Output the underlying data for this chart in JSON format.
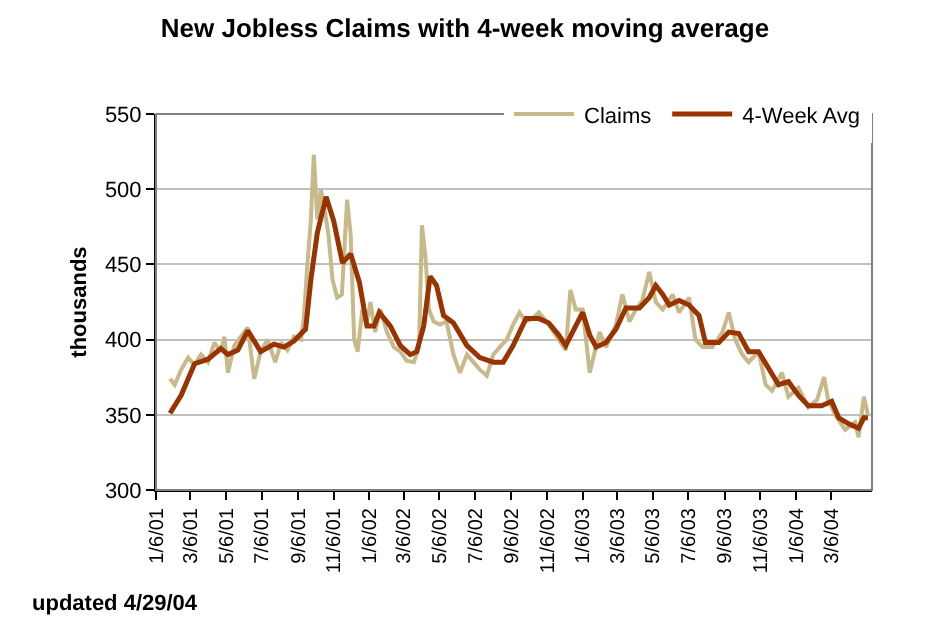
{
  "chart_data": {
    "type": "line",
    "title": "New Jobless Claims with 4-week moving average",
    "ylabel": "thousands",
    "annotations": [
      "updated 4/29/04"
    ],
    "xlim": [
      "2001-01-06",
      "2004-05-15"
    ],
    "xticks": [
      {
        "value": "2001-01-06",
        "label": "1/6/01"
      },
      {
        "value": "2001-03-06",
        "label": "3/6/01"
      },
      {
        "value": "2001-05-06",
        "label": "5/6/01"
      },
      {
        "value": "2001-07-06",
        "label": "7/6/01"
      },
      {
        "value": "2001-09-06",
        "label": "9/6/01"
      },
      {
        "value": "2001-11-06",
        "label": "11/6/01"
      },
      {
        "value": "2002-01-06",
        "label": "1/6/02"
      },
      {
        "value": "2002-03-06",
        "label": "3/6/02"
      },
      {
        "value": "2002-05-06",
        "label": "5/6/02"
      },
      {
        "value": "2002-07-06",
        "label": "7/6/02"
      },
      {
        "value": "2002-09-06",
        "label": "9/6/02"
      },
      {
        "value": "2002-11-06",
        "label": "11/6/02"
      },
      {
        "value": "2003-01-06",
        "label": "1/6/03"
      },
      {
        "value": "2003-03-06",
        "label": "3/6/03"
      },
      {
        "value": "2003-05-06",
        "label": "5/6/03"
      },
      {
        "value": "2003-07-06",
        "label": "7/6/03"
      },
      {
        "value": "2003-09-06",
        "label": "9/6/03"
      },
      {
        "value": "2003-11-06",
        "label": "11/6/03"
      },
      {
        "value": "2004-01-06",
        "label": "1/6/04"
      },
      {
        "value": "2004-03-06",
        "label": "3/6/04"
      }
    ],
    "ylim": [
      300,
      550
    ],
    "yticks": [
      300,
      350,
      400,
      450,
      500,
      550
    ],
    "grid": "y",
    "legend": "top right",
    "marker": "none",
    "line_style": "solid",
    "series": [
      {
        "name": "Claims",
        "color": "#c8b98a",
        "x": [
          "2001-01-30",
          "2001-02-07",
          "2001-02-18",
          "2001-03-02",
          "2001-03-13",
          "2001-03-24",
          "2001-04-05",
          "2001-04-16",
          "2001-04-27",
          "2001-05-03",
          "2001-05-09",
          "2001-05-20",
          "2001-05-31",
          "2001-06-12",
          "2001-06-23",
          "2001-07-04",
          "2001-07-16",
          "2001-07-29",
          "2001-08-08",
          "2001-08-19",
          "2001-08-30",
          "2001-09-11",
          "2001-09-16",
          "2001-09-22",
          "2001-09-28",
          "2001-10-03",
          "2001-10-09",
          "2001-10-15",
          "2001-10-20",
          "2001-10-28",
          "2001-11-04",
          "2001-11-12",
          "2001-11-20",
          "2001-11-29",
          "2001-12-05",
          "2001-12-11",
          "2001-12-17",
          "2001-12-25",
          "2002-01-01",
          "2002-01-08",
          "2002-01-16",
          "2002-01-25",
          "2002-02-05",
          "2002-02-17",
          "2002-02-28",
          "2002-03-11",
          "2002-03-23",
          "2002-04-01",
          "2002-04-06",
          "2002-04-12",
          "2002-04-18",
          "2002-04-26",
          "2002-05-07",
          "2002-05-18",
          "2002-05-30",
          "2002-06-10",
          "2002-06-22",
          "2002-07-03",
          "2002-07-14",
          "2002-07-26",
          "2002-08-06",
          "2002-08-17",
          "2002-08-29",
          "2002-09-09",
          "2002-09-20",
          "2002-10-01",
          "2002-10-12",
          "2002-10-23",
          "2002-11-09",
          "2002-11-26",
          "2002-12-08",
          "2002-12-16",
          "2002-12-25",
          "2003-01-06",
          "2003-01-18",
          "2003-02-04",
          "2003-02-15",
          "2003-03-04",
          "2003-03-15",
          "2003-03-27",
          "2003-04-07",
          "2003-04-18",
          "2003-04-30",
          "2003-05-11",
          "2003-05-23",
          "2003-06-09",
          "2003-06-20",
          "2003-07-07",
          "2003-07-18",
          "2003-07-30",
          "2003-08-16",
          "2003-09-02",
          "2003-09-13",
          "2003-09-24",
          "2003-10-06",
          "2003-10-17",
          "2003-11-03",
          "2003-11-15",
          "2003-11-26",
          "2003-12-13",
          "2003-12-24",
          "2004-01-10",
          "2004-01-27",
          "2004-02-11",
          "2004-02-23",
          "2004-03-01",
          "2004-03-13",
          "2004-03-30",
          "2004-04-16",
          "2004-04-22",
          "2004-05-01",
          "2004-05-08"
        ],
        "values": [
          374,
          370,
          380,
          388,
          383,
          390,
          385,
          398,
          392,
          402,
          378,
          396,
          402,
          408,
          374,
          392,
          400,
          385,
          398,
          393,
          402,
          400,
          415,
          450,
          480,
          523,
          480,
          500,
          490,
          470,
          440,
          428,
          430,
          493,
          470,
          400,
          392,
          420,
          410,
          425,
          405,
          420,
          405,
          395,
          392,
          386,
          385,
          395,
          476,
          455,
          420,
          412,
          410,
          412,
          390,
          378,
          390,
          385,
          380,
          376,
          390,
          395,
          400,
          410,
          418,
          412,
          414,
          418,
          410,
          400,
          393,
          433,
          420,
          420,
          378,
          405,
          395,
          410,
          430,
          412,
          420,
          426,
          445,
          425,
          420,
          430,
          418,
          428,
          400,
          395,
          395,
          405,
          418,
          400,
          390,
          385,
          392,
          370,
          366,
          378,
          362,
          368,
          355,
          360,
          375,
          360,
          350,
          340,
          345,
          335,
          362,
          350
        ]
      },
      {
        "name": "4-Week Avg",
        "color": "#993300",
        "x": [
          "2001-01-30",
          "2001-02-18",
          "2001-03-13",
          "2001-04-05",
          "2001-04-27",
          "2001-05-09",
          "2001-05-26",
          "2001-06-12",
          "2001-07-04",
          "2001-07-27",
          "2001-08-13",
          "2001-08-30",
          "2001-09-19",
          "2001-09-28",
          "2001-10-09",
          "2001-10-24",
          "2001-11-06",
          "2001-11-21",
          "2001-12-05",
          "2001-12-20",
          "2002-01-02",
          "2002-01-14",
          "2002-01-23",
          "2002-02-11",
          "2002-02-28",
          "2002-03-17",
          "2002-03-28",
          "2002-04-09",
          "2002-04-20",
          "2002-05-01",
          "2002-05-13",
          "2002-05-30",
          "2002-06-22",
          "2002-07-14",
          "2002-08-06",
          "2002-08-23",
          "2002-09-09",
          "2002-10-01",
          "2002-10-23",
          "2002-11-09",
          "2002-11-26",
          "2002-12-08",
          "2002-12-25",
          "2003-01-06",
          "2003-01-18",
          "2003-01-29",
          "2003-02-15",
          "2003-03-04",
          "2003-03-21",
          "2003-04-13",
          "2003-04-30",
          "2003-05-11",
          "2003-05-23",
          "2003-06-03",
          "2003-06-20",
          "2003-07-07",
          "2003-07-24",
          "2003-08-04",
          "2003-08-27",
          "2003-09-13",
          "2003-09-30",
          "2003-10-17",
          "2003-11-03",
          "2003-11-20",
          "2003-12-07",
          "2003-12-24",
          "2004-01-10",
          "2004-01-27",
          "2004-02-19",
          "2004-03-07",
          "2004-03-19",
          "2004-04-05",
          "2004-04-22",
          "2004-05-01",
          "2004-05-08"
        ],
        "values": [
          351,
          363,
          384,
          387,
          394,
          390,
          393,
          406,
          392,
          397,
          395,
          399,
          407,
          440,
          471,
          495,
          479,
          451,
          457,
          438,
          409,
          409,
          418,
          409,
          396,
          390,
          392,
          409,
          442,
          436,
          416,
          411,
          396,
          388,
          385,
          385,
          396,
          414,
          414,
          411,
          403,
          396,
          409,
          418,
          403,
          395,
          398,
          407,
          421,
          421,
          428,
          436,
          430,
          423,
          426,
          423,
          416,
          398,
          398,
          405,
          404,
          392,
          392,
          381,
          370,
          372,
          363,
          356,
          356,
          359,
          348,
          344,
          341,
          348,
          348
        ]
      }
    ]
  }
}
